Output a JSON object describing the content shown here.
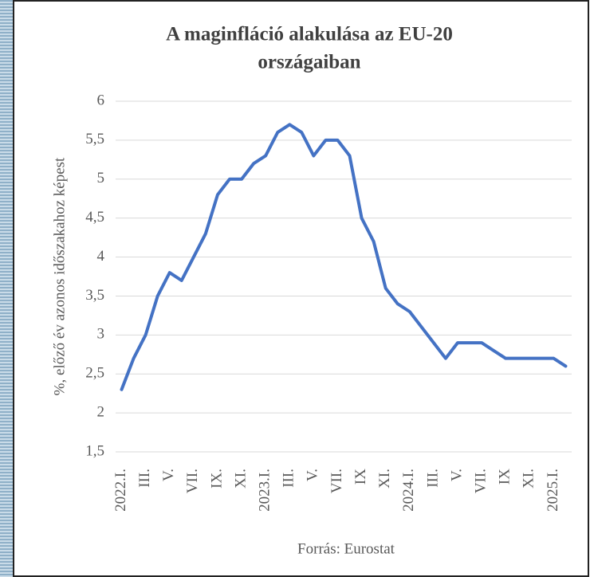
{
  "chart_data": {
    "type": "line",
    "title": "A maginfláció alakulása az EU-20",
    "title_line2": "országaiban",
    "y_axis_label": "%, előző év azonos időszakahoz képest",
    "source": "Forrás: Eurostat",
    "categories": [
      "2022.I.",
      null,
      "III.",
      null,
      "V.",
      null,
      "VII.",
      null,
      "IX.",
      null,
      "XI.",
      null,
      "2023.I.",
      null,
      "III.",
      null,
      "V.",
      null,
      "VII.",
      null,
      "IX",
      null,
      "XI.",
      null,
      "2024.I.",
      null,
      "III.",
      null,
      "V.",
      null,
      "VII.",
      null,
      "IX",
      null,
      "XI.",
      null,
      "2025.I.",
      null
    ],
    "values": [
      2.3,
      2.7,
      3.0,
      3.5,
      3.8,
      3.7,
      4.0,
      4.3,
      4.8,
      5.0,
      5.0,
      5.2,
      5.3,
      5.6,
      5.7,
      5.6,
      5.3,
      5.5,
      5.5,
      5.3,
      4.5,
      4.2,
      3.6,
      3.4,
      3.3,
      3.1,
      2.9,
      2.7,
      2.9,
      2.9,
      2.9,
      2.8,
      2.7,
      2.7,
      2.7,
      2.7,
      2.7,
      2.6
    ],
    "color": "#4472c4",
    "ylim": [
      1.5,
      6
    ],
    "yticks": [
      {
        "value": 1.5,
        "label": "1,5"
      },
      2,
      {
        "value": 2.5,
        "label": "2,5"
      },
      3,
      {
        "value": 3.5,
        "label": "3,5"
      },
      4,
      {
        "value": 4.5,
        "label": "4,5"
      },
      5,
      {
        "value": 5.5,
        "label": "5,5"
      },
      6
    ],
    "grid": true
  }
}
